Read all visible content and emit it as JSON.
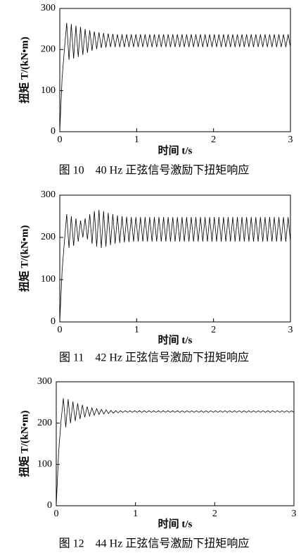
{
  "chart_data": [
    {
      "type": "line",
      "caption": "图 10　40 Hz 正弦信号激励下扭矩响应",
      "xlabel": "时间 t/s",
      "ylabel": "扭矩 T/(kN•m)",
      "color": "#000000",
      "xlim": [
        0,
        3
      ],
      "xticks": [
        0,
        1,
        2,
        3
      ],
      "ylim": [
        0,
        300
      ],
      "yticks": [
        0,
        100,
        200,
        300
      ],
      "x": [
        0,
        0.03,
        0.06,
        0.09,
        0.12,
        0.15,
        0.18,
        0.21,
        0.24,
        0.27,
        0.3,
        0.33,
        0.36,
        0.39,
        0.42,
        0.45,
        0.48,
        0.51,
        0.54,
        0.57,
        0.6,
        0.63,
        0.66,
        0.69,
        0.72,
        0.75,
        0.78,
        0.81,
        0.84,
        0.87,
        0.9,
        0.93,
        0.96,
        0.99,
        1.02,
        1.05,
        1.08,
        1.11,
        1.14,
        1.17,
        1.2,
        1.23,
        1.26,
        1.29,
        1.32,
        1.35,
        1.38,
        1.41,
        1.44,
        1.47,
        1.5,
        1.53,
        1.56,
        1.59,
        1.62,
        1.65,
        1.68,
        1.71,
        1.74,
        1.77,
        1.8,
        1.83,
        1.86,
        1.89,
        1.92,
        1.95,
        1.98,
        2.01,
        2.04,
        2.07,
        2.1,
        2.13,
        2.16,
        2.19,
        2.22,
        2.25,
        2.28,
        2.31,
        2.34,
        2.37,
        2.4,
        2.43,
        2.46,
        2.49,
        2.52,
        2.55,
        2.58,
        2.61,
        2.64,
        2.67,
        2.7,
        2.73,
        2.76,
        2.79,
        2.82,
        2.85,
        2.88,
        2.91,
        2.94,
        2.97,
        3
      ],
      "values": [
        0,
        130,
        200,
        265,
        175,
        262,
        178,
        258,
        182,
        255,
        187,
        250,
        192,
        247,
        197,
        244,
        201,
        242,
        204,
        240,
        205,
        239,
        206,
        238,
        206,
        237,
        206,
        237,
        206,
        237,
        206,
        237,
        206,
        237,
        206,
        237,
        206,
        237,
        206,
        237,
        206,
        237,
        206,
        237,
        206,
        237,
        206,
        237,
        206,
        237,
        206,
        237,
        206,
        237,
        206,
        237,
        206,
        237,
        206,
        237,
        206,
        237,
        206,
        237,
        206,
        237,
        206,
        237,
        206,
        237,
        206,
        237,
        206,
        237,
        206,
        237,
        206,
        237,
        206,
        237,
        206,
        237,
        206,
        237,
        206,
        237,
        206,
        237,
        206,
        237,
        206,
        237,
        206,
        237,
        206,
        237,
        206,
        237,
        206,
        237,
        206
      ]
    },
    {
      "type": "line",
      "caption": "图 11　42 Hz 正弦信号激励下扭矩响应",
      "xlabel": "时间 t/s",
      "ylabel": "扭矩 T/(kN•m)",
      "color": "#000000",
      "xlim": [
        0,
        3
      ],
      "xticks": [
        0,
        1,
        2,
        3
      ],
      "ylim": [
        0,
        300
      ],
      "yticks": [
        0,
        100,
        200,
        300
      ],
      "x": [
        0,
        0.03,
        0.06,
        0.09,
        0.12,
        0.15,
        0.18,
        0.21,
        0.24,
        0.27,
        0.3,
        0.33,
        0.36,
        0.39,
        0.42,
        0.45,
        0.48,
        0.51,
        0.54,
        0.57,
        0.6,
        0.63,
        0.66,
        0.69,
        0.72,
        0.75,
        0.78,
        0.81,
        0.84,
        0.87,
        0.9,
        0.93,
        0.96,
        0.99,
        1.02,
        1.05,
        1.08,
        1.11,
        1.14,
        1.17,
        1.2,
        1.23,
        1.26,
        1.29,
        1.32,
        1.35,
        1.38,
        1.41,
        1.44,
        1.47,
        1.5,
        1.53,
        1.56,
        1.59,
        1.62,
        1.65,
        1.68,
        1.71,
        1.74,
        1.77,
        1.8,
        1.83,
        1.86,
        1.89,
        1.92,
        1.95,
        1.98,
        2.01,
        2.04,
        2.07,
        2.1,
        2.13,
        2.16,
        2.19,
        2.22,
        2.25,
        2.28,
        2.31,
        2.34,
        2.37,
        2.4,
        2.43,
        2.46,
        2.49,
        2.52,
        2.55,
        2.58,
        2.61,
        2.64,
        2.67,
        2.7,
        2.73,
        2.76,
        2.79,
        2.82,
        2.85,
        2.88,
        2.91,
        2.94,
        2.97,
        3
      ],
      "values": [
        0,
        120,
        190,
        255,
        175,
        250,
        180,
        245,
        190,
        240,
        200,
        245,
        195,
        255,
        185,
        262,
        178,
        265,
        175,
        262,
        178,
        258,
        182,
        255,
        185,
        252,
        187,
        250,
        188,
        249,
        189,
        248,
        190,
        248,
        190,
        248,
        190,
        248,
        190,
        248,
        190,
        248,
        190,
        248,
        190,
        248,
        190,
        248,
        190,
        248,
        190,
        248,
        190,
        248,
        190,
        248,
        190,
        248,
        190,
        248,
        190,
        248,
        190,
        248,
        190,
        248,
        190,
        248,
        190,
        248,
        190,
        248,
        190,
        248,
        190,
        248,
        190,
        248,
        190,
        248,
        190,
        248,
        190,
        248,
        190,
        248,
        190,
        248,
        190,
        248,
        190,
        248,
        190,
        248,
        190,
        248,
        190,
        248,
        190,
        248,
        190
      ]
    },
    {
      "type": "line",
      "caption": "图 12　44 Hz 正弦信号激励下扭矩响应",
      "xlabel": "时间 t/s",
      "ylabel": "扭矩 T/(kN•m)",
      "color": "#000000",
      "xlim": [
        0,
        3
      ],
      "xticks": [
        0,
        1,
        2,
        3
      ],
      "ylim": [
        0,
        300
      ],
      "yticks": [
        0,
        100,
        200,
        300
      ],
      "x": [
        0,
        0.03,
        0.06,
        0.09,
        0.12,
        0.15,
        0.18,
        0.21,
        0.24,
        0.27,
        0.3,
        0.33,
        0.36,
        0.39,
        0.42,
        0.45,
        0.48,
        0.51,
        0.54,
        0.57,
        0.6,
        0.63,
        0.66,
        0.69,
        0.72,
        0.75,
        0.78,
        0.81,
        0.84,
        0.87,
        0.9,
        0.93,
        0.96,
        0.99,
        1.02,
        1.05,
        1.08,
        1.11,
        1.14,
        1.17,
        1.2,
        1.23,
        1.26,
        1.29,
        1.32,
        1.35,
        1.38,
        1.41,
        1.44,
        1.47,
        1.5,
        1.53,
        1.56,
        1.59,
        1.62,
        1.65,
        1.68,
        1.71,
        1.74,
        1.77,
        1.8,
        1.83,
        1.86,
        1.89,
        1.92,
        1.95,
        1.98,
        2.01,
        2.04,
        2.07,
        2.1,
        2.13,
        2.16,
        2.19,
        2.22,
        2.25,
        2.28,
        2.31,
        2.34,
        2.37,
        2.4,
        2.43,
        2.46,
        2.49,
        2.52,
        2.55,
        2.58,
        2.61,
        2.64,
        2.67,
        2.7,
        2.73,
        2.76,
        2.79,
        2.82,
        2.85,
        2.88,
        2.91,
        2.94,
        2.97,
        3
      ],
      "values": [
        0,
        130,
        205,
        260,
        190,
        258,
        200,
        252,
        205,
        248,
        210,
        244,
        214,
        240,
        217,
        237,
        219,
        235,
        221,
        233,
        222,
        232,
        223,
        231,
        224,
        230,
        225,
        230,
        226,
        230,
        226,
        230,
        226,
        230,
        226,
        230,
        226,
        230,
        226,
        230,
        226,
        230,
        226,
        230,
        226,
        230,
        226,
        230,
        226,
        230,
        226,
        230,
        226,
        230,
        226,
        230,
        226,
        230,
        226,
        230,
        226,
        230,
        226,
        230,
        226,
        230,
        226,
        230,
        226,
        230,
        226,
        230,
        226,
        230,
        226,
        230,
        226,
        230,
        226,
        230,
        226,
        230,
        226,
        230,
        226,
        230,
        226,
        230,
        226,
        230,
        226,
        230,
        226,
        230,
        226,
        230,
        226,
        230,
        226,
        230,
        226
      ]
    }
  ]
}
